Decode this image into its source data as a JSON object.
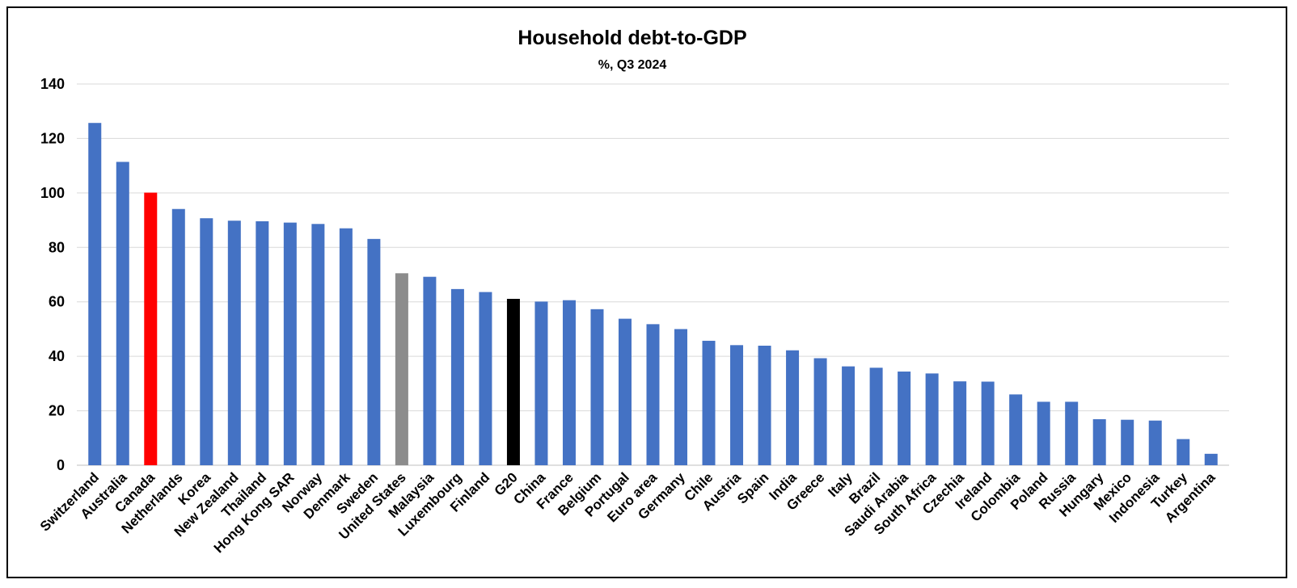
{
  "chart_data": {
    "type": "bar",
    "title": "Household debt-to-GDP",
    "subtitle": "%, Q3 2024",
    "xlabel": "",
    "ylabel": "",
    "ylim": [
      0,
      140
    ],
    "yticks": [
      0,
      20,
      40,
      60,
      80,
      100,
      120,
      140
    ],
    "grid": true,
    "categories": [
      "Switzerland",
      "Australia",
      "Canada",
      "Netherlands",
      "Korea",
      "New Zealand",
      "Thailand",
      "Hong Kong SAR",
      "Norway",
      "Denmark",
      "Sweden",
      "United States",
      "Malaysia",
      "Luxembourg",
      "Finland",
      "G20",
      "China",
      "France",
      "Belgium",
      "Portugal",
      "Euro area",
      "Germany",
      "Chile",
      "Austria",
      "Spain",
      "India",
      "Greece",
      "Italy",
      "Brazil",
      "Saudi Arabia",
      "South Africa",
      "Czechia",
      "Ireland",
      "Colombia",
      "Poland",
      "Russia",
      "Hungary",
      "Mexico",
      "Indonesia",
      "Turkey",
      "Argentina"
    ],
    "values": [
      125.7,
      111.4,
      100.1,
      94.1,
      90.7,
      89.8,
      89.6,
      89.1,
      88.6,
      87.0,
      83.1,
      70.5,
      69.2,
      64.7,
      63.6,
      61.1,
      60.1,
      60.6,
      57.3,
      53.8,
      51.8,
      50.0,
      45.7,
      44.1,
      43.9,
      42.2,
      39.3,
      36.3,
      35.8,
      34.4,
      33.7,
      30.8,
      30.7,
      26.0,
      23.3,
      23.3,
      16.9,
      16.7,
      16.4,
      9.6,
      4.2
    ],
    "colors": {
      "default": "#4472c4",
      "Canada": "#ff0000",
      "United States": "#8c8c8c",
      "G20": "#000000"
    }
  }
}
